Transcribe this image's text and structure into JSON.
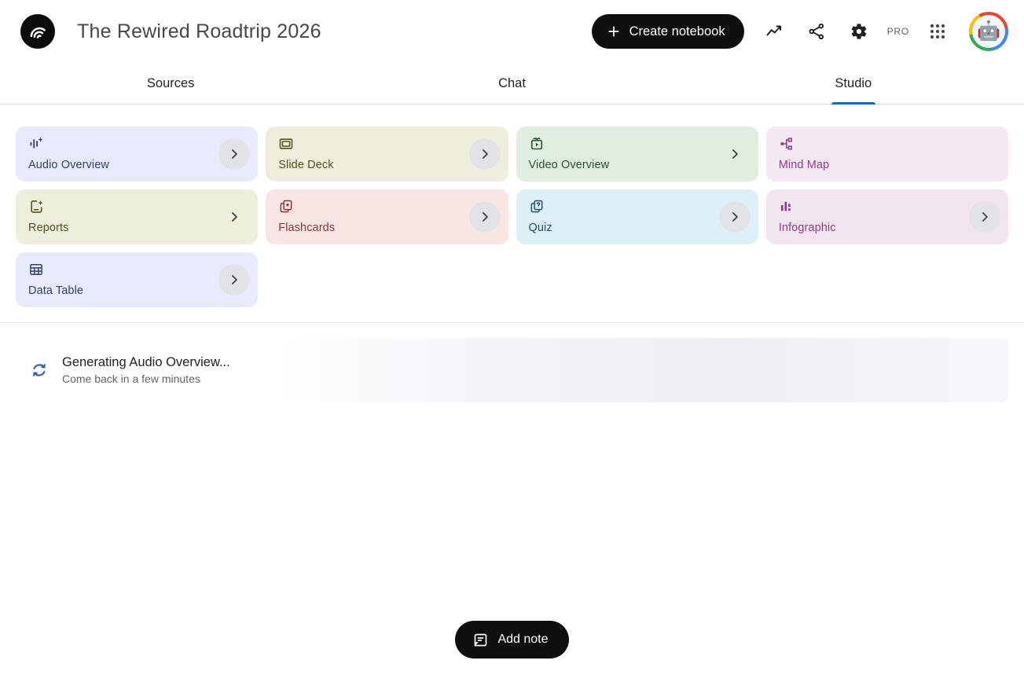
{
  "header": {
    "title": "The Rewired Roadtrip 2026",
    "create_notebook_label": "Create notebook",
    "pro_label": "PRO",
    "icon_names": [
      "notebooklm-logo-icon",
      "plus-icon",
      "analytics-icon",
      "share-icon",
      "settings-icon",
      "apps-grid-icon",
      "avatar"
    ]
  },
  "tabs": [
    {
      "label": "Sources",
      "active": false
    },
    {
      "label": "Chat",
      "active": false
    },
    {
      "label": "Studio",
      "active": true
    }
  ],
  "studio": {
    "cards": [
      {
        "label": "Audio Overview",
        "icon": "audio-waveform-sparkle-icon",
        "bg": "#e7ebfb",
        "fg": "#33406e",
        "chevron": "circle"
      },
      {
        "label": "Slide Deck",
        "icon": "slide-frame-icon",
        "bg": "#efeedd",
        "fg": "#55511f",
        "chevron": "circle"
      },
      {
        "label": "Video Overview",
        "icon": "video-clapper-icon",
        "bg": "#dfeede",
        "fg": "#29512f",
        "chevron": "plain"
      },
      {
        "label": "Mind Map",
        "icon": "mind-map-icon",
        "bg": "#f4e9f2",
        "fg": "#8e3c8a",
        "chevron": "none"
      },
      {
        "label": "Reports",
        "icon": "report-sparkle-icon",
        "bg": "#eeeedd",
        "fg": "#55511f",
        "chevron": "plain"
      },
      {
        "label": "Flashcards",
        "icon": "flashcards-star-icon",
        "bg": "#f8e6e5",
        "fg": "#8e3338",
        "chevron": "circle"
      },
      {
        "label": "Quiz",
        "icon": "quiz-cards-icon",
        "bg": "#def0f7",
        "fg": "#205066",
        "chevron": "circle"
      },
      {
        "label": "Infographic",
        "icon": "bar-chart-icon",
        "bg": "#f1e5ef",
        "fg": "#8e3c8a",
        "chevron": "circle"
      },
      {
        "label": "Data Table",
        "icon": "data-table-icon",
        "bg": "#e7ebfb",
        "fg": "#33406e",
        "chevron": "circle"
      }
    ],
    "generating": {
      "title": "Generating Audio Overview...",
      "subtitle": "Come back in a few minutes"
    },
    "add_note_label": "Add note"
  },
  "colors": {
    "tab_active_underline": "#1a63ce",
    "button_black": "#0e0e0e",
    "generating_spinner": "#3a5fb0"
  }
}
